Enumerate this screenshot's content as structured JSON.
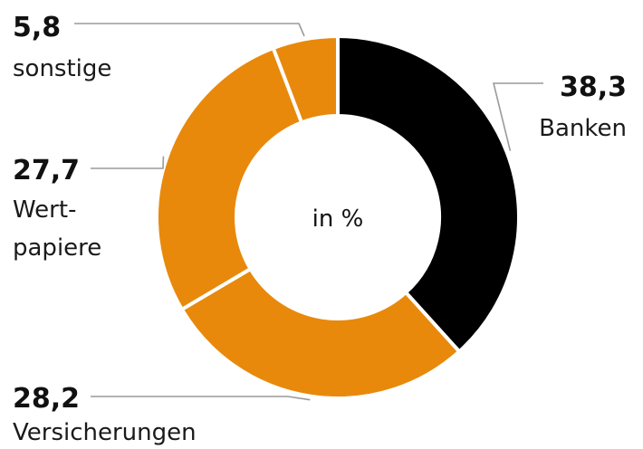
{
  "chart_data": {
    "type": "pie",
    "variant": "donut",
    "center_label": "in %",
    "slices": [
      {
        "label": "Banken",
        "value": 38.3,
        "value_label": "38,3",
        "color": "#000000"
      },
      {
        "label": "Versicherungen",
        "value": 28.2,
        "value_label": "28,2",
        "color": "#E8890C"
      },
      {
        "label": "Wert-papiere",
        "label_lines": [
          "Wert-",
          "papiere"
        ],
        "value": 27.7,
        "value_label": "27,7",
        "color": "#E8890C"
      },
      {
        "label": "sonstige",
        "value": 5.8,
        "value_label": "5,8",
        "color": "#E8890C"
      }
    ],
    "start_angle_deg": 0,
    "direction": "clockwise",
    "slice_border_color": "#ffffff"
  }
}
